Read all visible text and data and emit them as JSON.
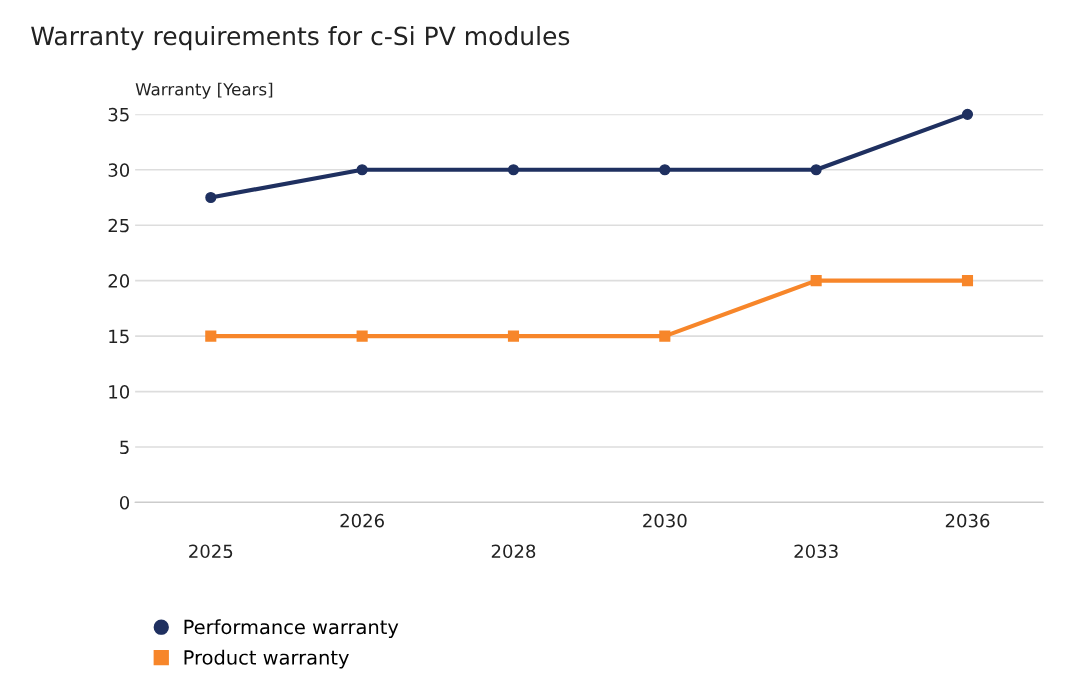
{
  "chart_data": {
    "type": "line",
    "title": "Warranty requirements for c-Si PV modules",
    "ylabel": "Warranty [Years]",
    "categories": [
      "2025",
      "2026",
      "2028",
      "2030",
      "2033",
      "2036"
    ],
    "series": [
      {
        "name": "Performance warranty",
        "color": "#1f3060",
        "marker": "circle",
        "values": [
          27.5,
          30,
          30,
          30,
          30,
          35
        ]
      },
      {
        "name": "Product warranty",
        "color": "#f7862a",
        "marker": "square",
        "values": [
          15,
          15,
          15,
          15,
          20,
          20
        ]
      }
    ],
    "ylim": [
      0,
      35
    ],
    "yticks": [
      0,
      5,
      10,
      15,
      20,
      25,
      30,
      35
    ],
    "grid": "y",
    "legend": "bottom left"
  }
}
